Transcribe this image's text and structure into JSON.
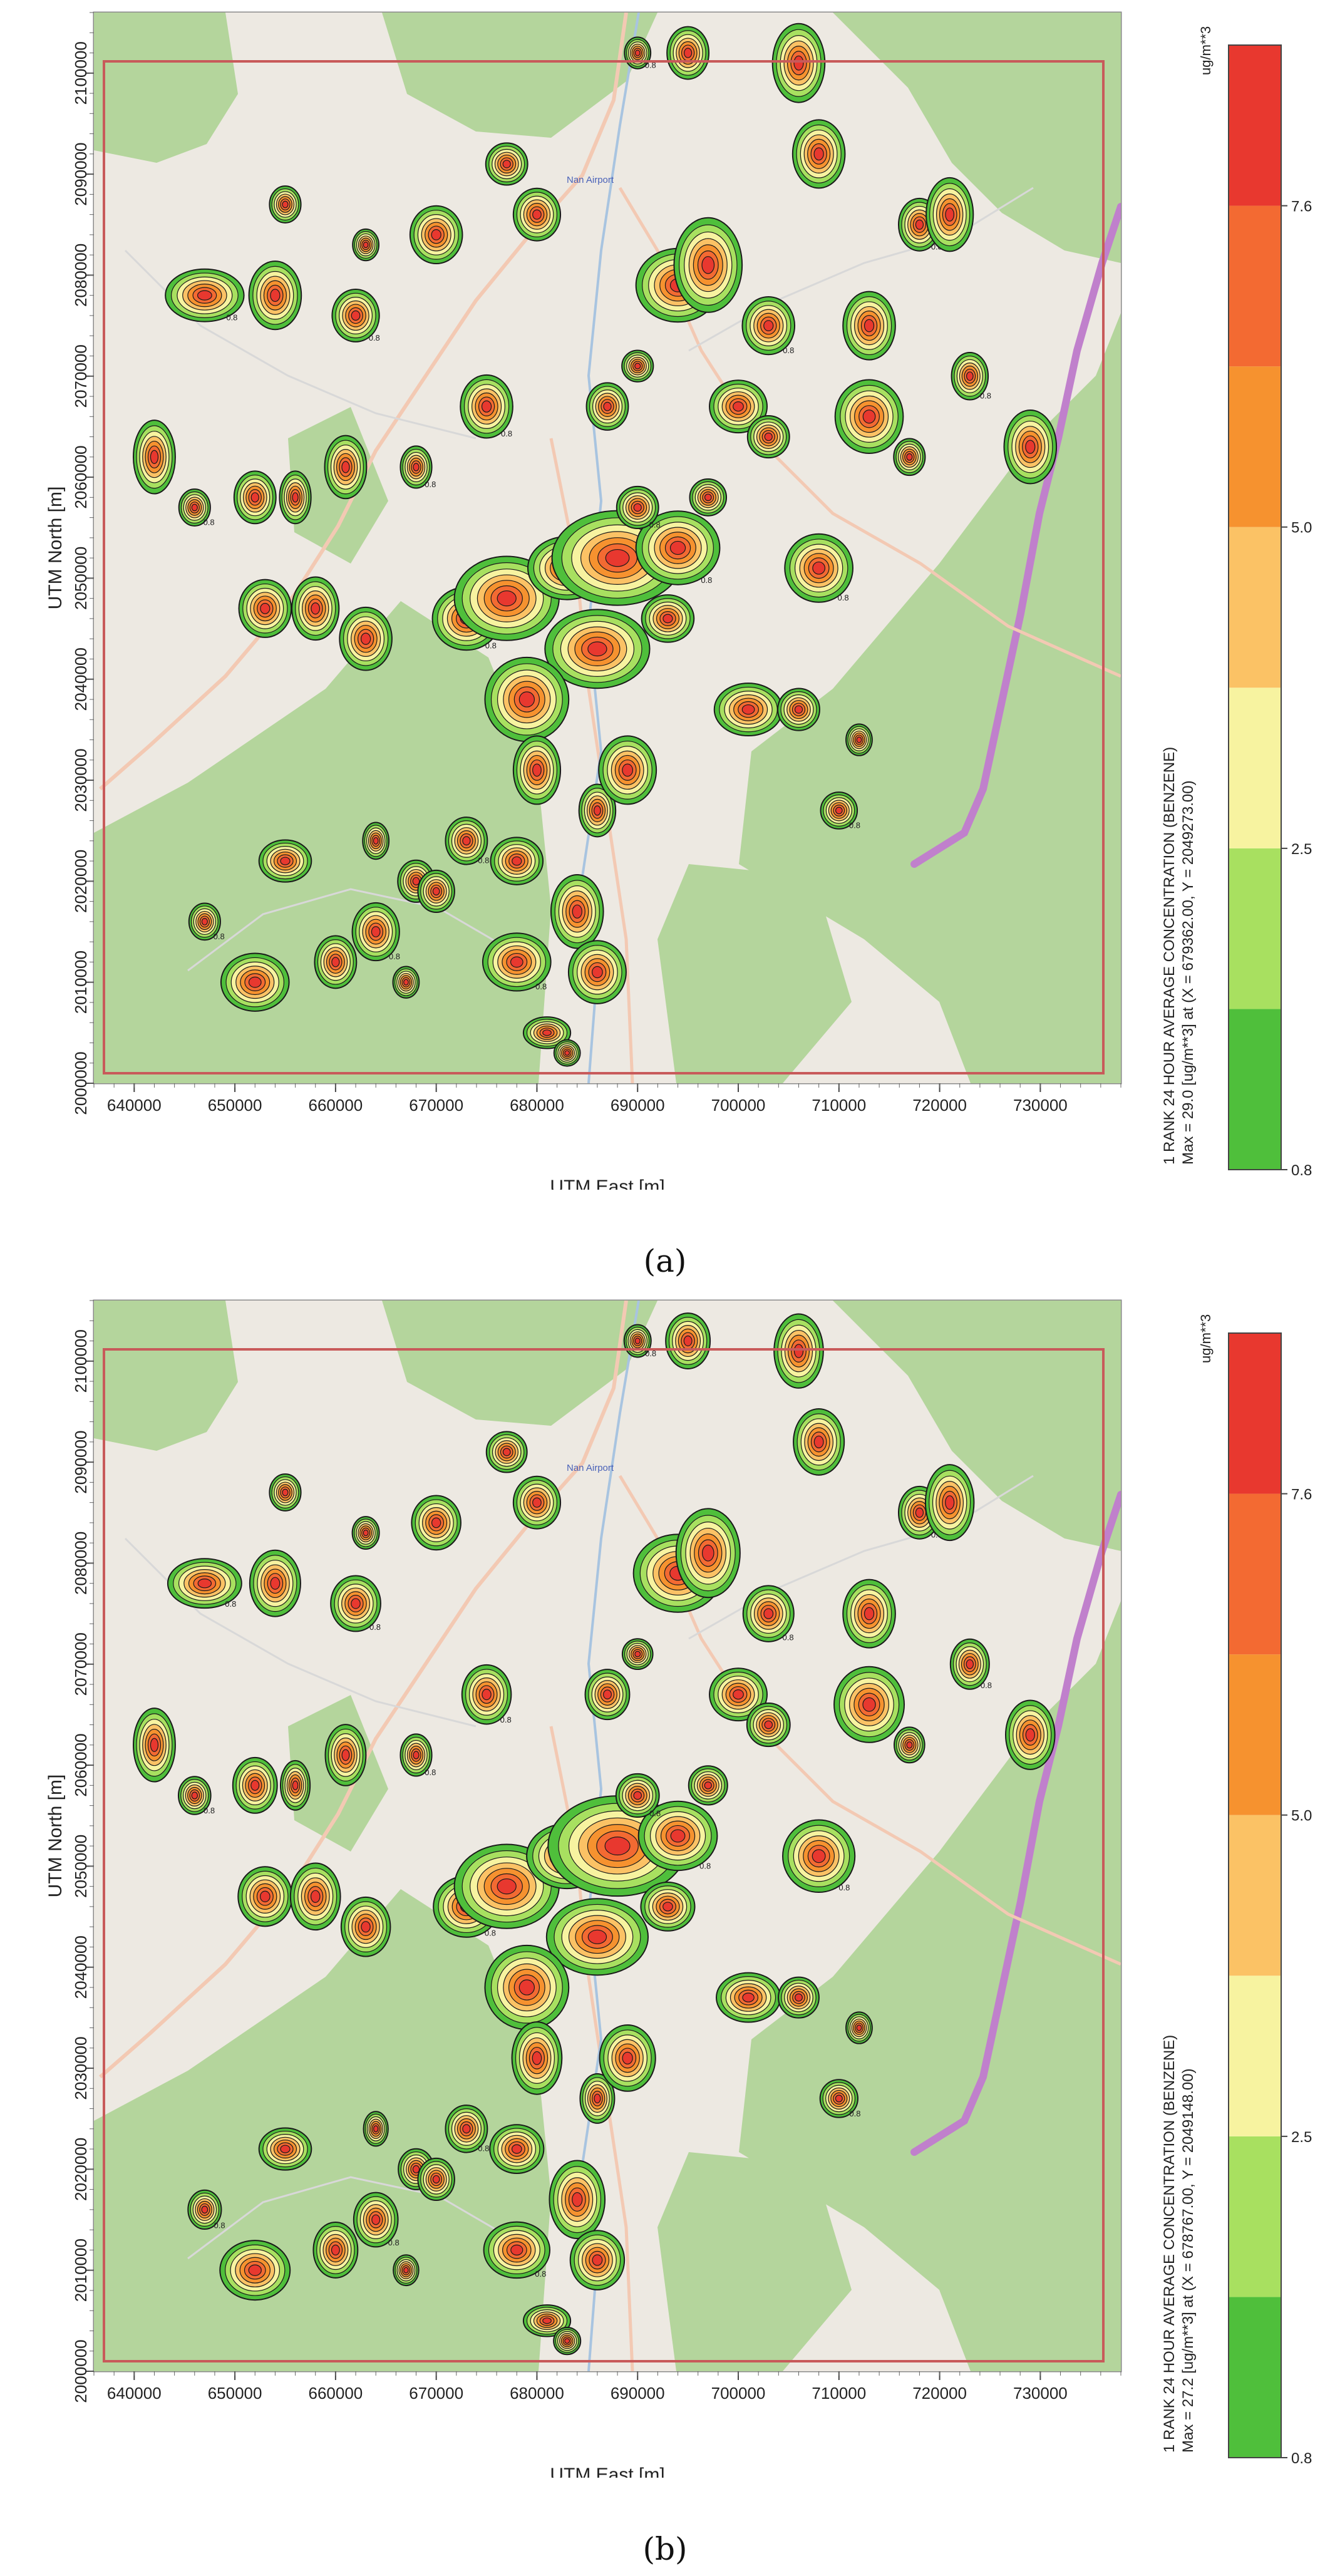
{
  "axes": {
    "x_label": "UTM East [m]",
    "y_label": "UTM North [m]",
    "x_ticks": [
      "640000",
      "650000",
      "660000",
      "670000",
      "680000",
      "690000",
      "700000",
      "710000",
      "720000",
      "730000"
    ],
    "y_ticks": [
      "2000000",
      "2010000",
      "2020000",
      "2030000",
      "2040000",
      "2050000",
      "2060000",
      "2070000",
      "2080000",
      "2090000",
      "2100000"
    ]
  },
  "map_labels": {
    "airport": "Nan Airport"
  },
  "legend": {
    "unit": "ug/m**3",
    "levels": [
      "0.8",
      "2.5",
      "5.0",
      "7.6"
    ],
    "colors": [
      "#4fbf3b",
      "#a8e060",
      "#f7f3a0",
      "#fbc265",
      "#f6922f",
      "#f36a32",
      "#e8382f"
    ]
  },
  "contour_labels": [
    "0.8",
    "2.5",
    "5.0",
    "7.6"
  ],
  "panels": [
    {
      "caption": "(a)",
      "legend_title": "1 RANK 24 HOUR AVERAGE CONCENTRATION (BENZENE)",
      "legend_max": "Max = 29.0 [ug/m**3] at (X = 679362.00,  Y = 2049273.00)"
    },
    {
      "caption": "(b)",
      "legend_title": "1 RANK 24 HOUR AVERAGE CONCENTRATION (BENZENE)",
      "legend_max": "Max = 27.2 [ug/m**3] at (X = 678767.00,  Y = 2049148.00)"
    }
  ],
  "plumes": [
    [
      647,
      2078,
      1.5,
      1.0
    ],
    [
      654,
      2078,
      1.0,
      1.3
    ],
    [
      655,
      2087,
      0.6,
      0.7
    ],
    [
      663,
      2083,
      0.5,
      0.6
    ],
    [
      662,
      2076,
      0.9,
      1.0
    ],
    [
      670,
      2084,
      1.0,
      1.1
    ],
    [
      677,
      2091,
      0.8,
      0.8
    ],
    [
      680,
      2086,
      0.9,
      1.0
    ],
    [
      690,
      2102,
      0.5,
      0.6
    ],
    [
      695,
      2102,
      0.8,
      1.0
    ],
    [
      706,
      2101,
      1.0,
      1.5
    ],
    [
      708,
      2092,
      1.0,
      1.3
    ],
    [
      718,
      2085,
      0.8,
      1.0
    ],
    [
      721,
      2086,
      0.9,
      1.4
    ],
    [
      694,
      2079,
      1.6,
      1.4
    ],
    [
      697,
      2081,
      1.3,
      1.8
    ],
    [
      703,
      2075,
      1.0,
      1.1
    ],
    [
      700,
      2067,
      1.1,
      1.0
    ],
    [
      703,
      2064,
      0.8,
      0.8
    ],
    [
      687,
      2067,
      0.8,
      0.9
    ],
    [
      675,
      2067,
      1.0,
      1.2
    ],
    [
      690,
      2071,
      0.6,
      0.6
    ],
    [
      713,
      2075,
      1.0,
      1.3
    ],
    [
      713,
      2066,
      1.3,
      1.4
    ],
    [
      723,
      2070,
      0.7,
      0.9
    ],
    [
      729,
      2063,
      1.0,
      1.4
    ],
    [
      717,
      2062,
      0.6,
      0.7
    ],
    [
      642,
      2062,
      0.8,
      1.4
    ],
    [
      646,
      2057,
      0.6,
      0.7
    ],
    [
      652,
      2058,
      0.8,
      1.0
    ],
    [
      656,
      2058,
      0.6,
      1.0
    ],
    [
      661,
      2061,
      0.8,
      1.2
    ],
    [
      668,
      2061,
      0.6,
      0.8
    ],
    [
      653,
      2047,
      1.0,
      1.1
    ],
    [
      658,
      2047,
      0.9,
      1.2
    ],
    [
      663,
      2044,
      1.0,
      1.2
    ],
    [
      673,
      2046,
      1.3,
      1.2
    ],
    [
      677,
      2048,
      2.0,
      1.6
    ],
    [
      683,
      2051,
      1.5,
      1.2
    ],
    [
      688,
      2052,
      2.5,
      1.8
    ],
    [
      694,
      2053,
      1.6,
      1.4
    ],
    [
      686,
      2043,
      2.0,
      1.5
    ],
    [
      679,
      2038,
      1.6,
      1.6
    ],
    [
      693,
      2046,
      1.0,
      0.9
    ],
    [
      708,
      2051,
      1.3,
      1.3
    ],
    [
      701,
      2037,
      1.3,
      1.0
    ],
    [
      706,
      2037,
      0.8,
      0.8
    ],
    [
      712,
      2034,
      0.5,
      0.6
    ],
    [
      710,
      2027,
      0.7,
      0.7
    ],
    [
      680,
      2031,
      0.9,
      1.3
    ],
    [
      686,
      2027,
      0.7,
      1.0
    ],
    [
      689,
      2031,
      1.1,
      1.3
    ],
    [
      673,
      2024,
      0.8,
      0.9
    ],
    [
      678,
      2022,
      1.0,
      0.9
    ],
    [
      684,
      2017,
      1.0,
      1.4
    ],
    [
      686,
      2011,
      1.1,
      1.2
    ],
    [
      678,
      2012,
      1.3,
      1.1
    ],
    [
      681,
      2005,
      0.9,
      0.6
    ],
    [
      683,
      2003,
      0.5,
      0.5
    ],
    [
      660,
      2012,
      0.8,
      1.0
    ],
    [
      664,
      2015,
      0.9,
      1.1
    ],
    [
      668,
      2020,
      0.7,
      0.8
    ],
    [
      655,
      2022,
      1.0,
      0.8
    ],
    [
      652,
      2010,
      1.3,
      1.1
    ],
    [
      647,
      2016,
      0.6,
      0.7
    ],
    [
      664,
      2024,
      0.5,
      0.7
    ],
    [
      667,
      2010,
      0.5,
      0.6
    ],
    [
      670,
      2019,
      0.7,
      0.8
    ],
    [
      690,
      2057,
      0.8,
      0.8
    ],
    [
      697,
      2058,
      0.7,
      0.7
    ]
  ]
}
